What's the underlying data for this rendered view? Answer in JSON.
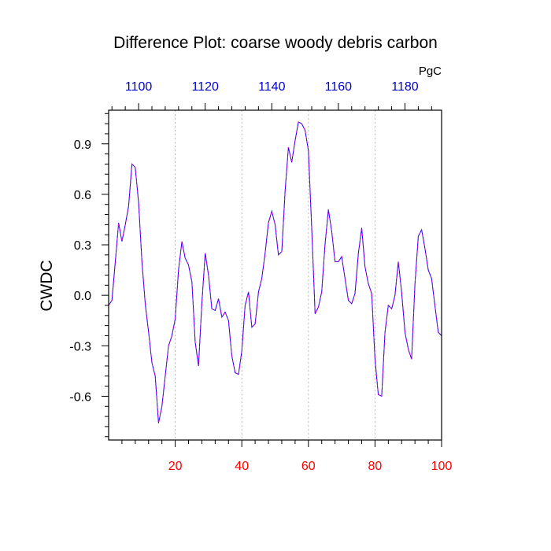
{
  "chart_data": {
    "type": "line",
    "title": "Difference Plot: coarse woody debris carbon",
    "ylabel": "CWDC",
    "top_axis_unit": "PgC",
    "xlim": [
      0,
      100
    ],
    "ylim": [
      -0.86,
      1.1
    ],
    "x_ticks": [
      20,
      40,
      60,
      80,
      100
    ],
    "y_ticks": [
      0.9,
      0.6,
      0.3,
      0.0,
      -0.3,
      -0.6
    ],
    "y_tick_labels": [
      "0.9",
      "0.6",
      "0.3",
      "0.0",
      "-0.3",
      "-0.6"
    ],
    "top_axis": {
      "x_at_bottom_units": [
        9,
        29,
        49,
        69,
        89
      ],
      "labels": [
        "1100",
        "1120",
        "1140",
        "1160",
        "1180"
      ]
    },
    "gridlines_x": [
      20,
      40,
      60,
      80
    ],
    "grid": "dotted vertical",
    "colors": {
      "bottom_tick_labels": "#ff0000",
      "top_tick_labels": "#0000cc",
      "series_line_1": "#0000ff",
      "series_line_2": "#cc00cc",
      "frame": "#000000",
      "grid": "#aaaaaa"
    },
    "series": [
      {
        "values": [
          [
            0,
            -0.06
          ],
          [
            1,
            -0.03
          ],
          [
            2,
            0.2
          ],
          [
            3,
            0.43
          ],
          [
            4,
            0.32
          ],
          [
            5,
            0.42
          ],
          [
            6,
            0.53
          ],
          [
            7,
            0.78
          ],
          [
            8,
            0.76
          ],
          [
            9,
            0.55
          ],
          [
            10,
            0.2
          ],
          [
            11,
            -0.05
          ],
          [
            12,
            -0.22
          ],
          [
            13,
            -0.4
          ],
          [
            14,
            -0.48
          ],
          [
            15,
            -0.76
          ],
          [
            16,
            -0.66
          ],
          [
            17,
            -0.48
          ],
          [
            18,
            -0.3
          ],
          [
            19,
            -0.24
          ],
          [
            20,
            -0.14
          ],
          [
            21,
            0.15
          ],
          [
            22,
            0.32
          ],
          [
            23,
            0.22
          ],
          [
            24,
            0.18
          ],
          [
            25,
            0.08
          ],
          [
            26,
            -0.28
          ],
          [
            27,
            -0.42
          ],
          [
            28,
            -0.05
          ],
          [
            29,
            0.25
          ],
          [
            30,
            0.12
          ],
          [
            31,
            -0.08
          ],
          [
            32,
            -0.09
          ],
          [
            33,
            -0.02
          ],
          [
            34,
            -0.13
          ],
          [
            35,
            -0.1
          ],
          [
            36,
            -0.15
          ],
          [
            37,
            -0.36
          ],
          [
            38,
            -0.46
          ],
          [
            39,
            -0.47
          ],
          [
            40,
            -0.33
          ],
          [
            41,
            -0.06
          ],
          [
            42,
            0.02
          ],
          [
            43,
            -0.19
          ],
          [
            44,
            -0.17
          ],
          [
            45,
            0.02
          ],
          [
            46,
            0.1
          ],
          [
            47,
            0.25
          ],
          [
            48,
            0.43
          ],
          [
            49,
            0.5
          ],
          [
            50,
            0.42
          ],
          [
            51,
            0.24
          ],
          [
            52,
            0.26
          ],
          [
            53,
            0.62
          ],
          [
            54,
            0.88
          ],
          [
            55,
            0.79
          ],
          [
            56,
            0.92
          ],
          [
            57,
            1.03
          ],
          [
            58,
            1.02
          ],
          [
            59,
            0.98
          ],
          [
            60,
            0.86
          ],
          [
            61,
            0.4
          ],
          [
            62,
            -0.11
          ],
          [
            63,
            -0.07
          ],
          [
            64,
            0.02
          ],
          [
            65,
            0.3
          ],
          [
            66,
            0.51
          ],
          [
            67,
            0.38
          ],
          [
            68,
            0.2
          ],
          [
            69,
            0.2
          ],
          [
            70,
            0.23
          ],
          [
            71,
            0.1
          ],
          [
            72,
            -0.03
          ],
          [
            73,
            -0.05
          ],
          [
            74,
            0.01
          ],
          [
            75,
            0.25
          ],
          [
            76,
            0.4
          ],
          [
            77,
            0.17
          ],
          [
            78,
            0.07
          ],
          [
            79,
            0.01
          ],
          [
            80,
            -0.38
          ],
          [
            81,
            -0.59
          ],
          [
            82,
            -0.6
          ],
          [
            83,
            -0.22
          ],
          [
            84,
            -0.06
          ],
          [
            85,
            -0.08
          ],
          [
            86,
            0.0
          ],
          [
            87,
            0.2
          ],
          [
            88,
            0.02
          ],
          [
            89,
            -0.22
          ],
          [
            90,
            -0.32
          ],
          [
            91,
            -0.38
          ],
          [
            92,
            0.07
          ],
          [
            93,
            0.35
          ],
          [
            94,
            0.39
          ],
          [
            95,
            0.28
          ],
          [
            96,
            0.15
          ],
          [
            97,
            0.1
          ],
          [
            98,
            -0.06
          ],
          [
            99,
            -0.22
          ],
          [
            100,
            -0.24
          ]
        ]
      }
    ]
  }
}
